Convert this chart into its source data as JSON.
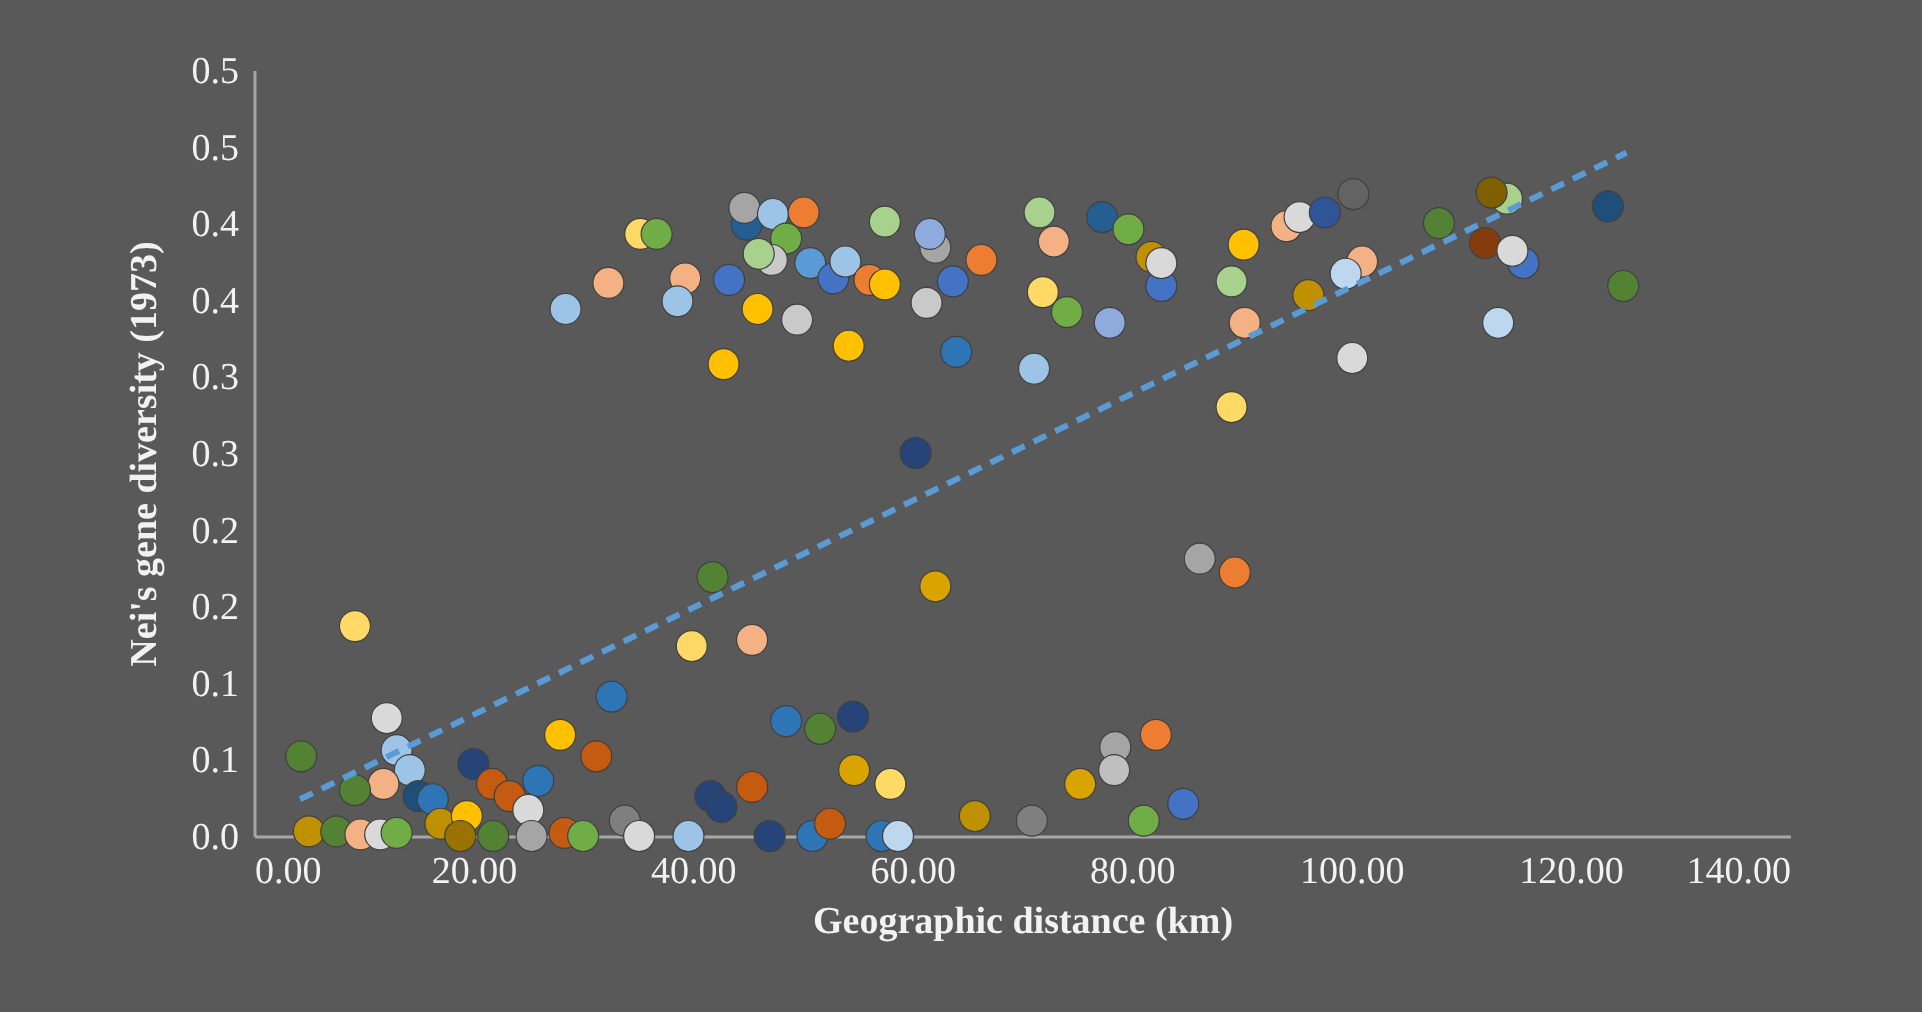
{
  "chart_data": {
    "type": "scatter",
    "xlabel": "Geographic distance (km)",
    "ylabel": "Nei's gene diversity (1973)",
    "xlim": [
      0,
      140
    ],
    "ylim": [
      0,
      0.5
    ],
    "xticks": [
      {
        "value": 0,
        "label": "0.00"
      },
      {
        "value": 20,
        "label": "20.00"
      },
      {
        "value": 40,
        "label": "40.00"
      },
      {
        "value": 60,
        "label": "60.00"
      },
      {
        "value": 80,
        "label": "80.00"
      },
      {
        "value": 100,
        "label": "100.00"
      },
      {
        "value": 120,
        "label": "120.00"
      },
      {
        "value": 140,
        "label": "140.00"
      }
    ],
    "yticks": [
      {
        "value": 0,
        "label": "0.0"
      },
      {
        "value": 0.05,
        "label": "0.1"
      },
      {
        "value": 0.1,
        "label": "0.1"
      },
      {
        "value": 0.15,
        "label": "0.2"
      },
      {
        "value": 0.2,
        "label": "0.2"
      },
      {
        "value": 0.25,
        "label": "0.3"
      },
      {
        "value": 0.3,
        "label": "0.3"
      },
      {
        "value": 0.35,
        "label": "0.4"
      },
      {
        "value": 0.4,
        "label": "0.4"
      },
      {
        "value": 0.45,
        "label": "0.5"
      },
      {
        "value": 0.5,
        "label": "0.5"
      }
    ],
    "grid": false,
    "marker": "circle",
    "series": [
      {
        "type": "scatter",
        "x": [
          28.4,
          32.3,
          35.2,
          36.7,
          39.3,
          38.6,
          43.3,
          45.9,
          42.8,
          44.9,
          44.7,
          47.3,
          50.1,
          48.5,
          47.2,
          46.0,
          50.7,
          52.8,
          53.9,
          49.5,
          54.2,
          56.1,
          57.5,
          57.5,
          62.1,
          61.6,
          63.7,
          66.3,
          61.3,
          64.0,
          60.3,
          71.6,
          72.9,
          71.9,
          74.1,
          71.1,
          77.3,
          79.7,
          81.8,
          82.7,
          82.7,
          78.0,
          90.2,
          89.1,
          90.3,
          89.1,
          94.1,
          95.3,
          97.6,
          100.2,
          96.1,
          101.0,
          99.5,
          100.1,
          108.0,
          114.2,
          112.8,
          112.2,
          115.7,
          114.7,
          113.4,
          123.4,
          124.8,
          4.3,
          9.2,
          12.1,
          13.0,
          14.2,
          11.8,
          9.2,
          15.0,
          16.3,
          5.0,
          7.5,
          9.7,
          11.5,
          13.0,
          17.0,
          19.4,
          18.8,
          21.8,
          20.0,
          21.7,
          23.3,
          25.9,
          25.0,
          25.3,
          27.9,
          31.2,
          32.6,
          41.8,
          39.9,
          45.4,
          28.3,
          30.0,
          33.8,
          35.1,
          39.6,
          41.6,
          42.6,
          45.4,
          47.0,
          48.5,
          51.6,
          54.6,
          54.7,
          58.0,
          50.9,
          52.5,
          57.2,
          58.7,
          62.1,
          65.7,
          70.9,
          75.3,
          78.5,
          78.4,
          82.2,
          81.1,
          84.7,
          86.2,
          89.4
        ],
        "values": [
          0.344,
          0.361,
          0.393,
          0.393,
          0.364,
          0.349,
          0.363,
          0.344,
          0.308,
          0.399,
          0.41,
          0.406,
          0.407,
          0.39,
          0.376,
          0.38,
          0.374,
          0.364,
          0.375,
          0.337,
          0.32,
          0.363,
          0.36,
          0.401,
          0.384,
          0.393,
          0.362,
          0.376,
          0.348,
          0.316,
          0.25,
          0.407,
          0.388,
          0.355,
          0.342,
          0.305,
          0.404,
          0.396,
          0.378,
          0.359,
          0.374,
          0.335,
          0.386,
          0.362,
          0.335,
          0.28,
          0.398,
          0.404,
          0.407,
          0.419,
          0.353,
          0.375,
          0.367,
          0.312,
          0.4,
          0.416,
          0.42,
          0.387,
          0.374,
          0.382,
          0.335,
          0.411,
          0.359,
          0.052,
          0.137,
          0.077,
          0.056,
          0.043,
          0.034,
          0.03,
          0.026,
          0.024,
          0.003,
          0.003,
          0.001,
          0.001,
          0.002,
          0.008,
          0.013,
          0.0,
          0.0,
          0.047,
          0.034,
          0.026,
          0.036,
          0.017,
          0.0,
          0.066,
          0.052,
          0.091,
          0.169,
          0.124,
          0.128,
          0.002,
          0.0,
          0.01,
          0.0,
          0.0,
          0.026,
          0.019,
          0.032,
          0.0,
          0.075,
          0.07,
          0.078,
          0.043,
          0.034,
          0.0,
          0.008,
          0.0,
          0.0,
          0.163,
          0.013,
          0.01,
          0.034,
          0.058,
          0.043,
          0.066,
          0.01,
          0.021,
          0.181,
          0.172
        ],
        "colors": [
          "#9dc3e6",
          "#f4b183",
          "#ffd966",
          "#70ad47",
          "#f4b183",
          "#9dc3e6",
          "#4472c4",
          "#ffc000",
          "#ffc000",
          "#255e91",
          "#a5a5a5",
          "#9dc3e6",
          "#ed7d31",
          "#70ad47",
          "#c9c9c9",
          "#a9d18e",
          "#5b9bd5",
          "#4472c4",
          "#9dc3e6",
          "#c9c9c9",
          "#ffc000",
          "#ed7d31",
          "#ffc000",
          "#a9d18e",
          "#a5a5a5",
          "#8faadc",
          "#4472c4",
          "#ed7d31",
          "#c9c9c9",
          "#2e75b6",
          "#264478",
          "#a9d18e",
          "#f4b183",
          "#ffd966",
          "#70ad47",
          "#9dc3e6",
          "#255e91",
          "#70ad47",
          "#bf9000",
          "#4472c4",
          "#d9d9d9",
          "#8faadc",
          "#ffc000",
          "#a9d18e",
          "#f4b183",
          "#ffd966",
          "#f4b183",
          "#d9d9d9",
          "#2f5597",
          "#636363",
          "#bf9000",
          "#f4b183",
          "#bdd7ee",
          "#d9d9d9",
          "#548235",
          "#a9d18e",
          "#7f6000",
          "#843c0c",
          "#4472c4",
          "#d9d9d9",
          "#bdd7ee",
          "#1f4e79",
          "#548235",
          "#548235",
          "#ffd966",
          "#d9d9d9",
          "#9dc3e6",
          "#9dc3e6",
          "#f4b183",
          "#548235",
          "#1f4e79",
          "#2e75b6",
          "#bf9000",
          "#548235",
          "#f4b183",
          "#d9d9d9",
          "#70ad47",
          "#bf9000",
          "#ffc000",
          "#997300",
          "#548235",
          "#264478",
          "#c55a11",
          "#c55a11",
          "#2e75b6",
          "#d9d9d9",
          "#a5a5a5",
          "#ffc000",
          "#c55a11",
          "#2e75b6",
          "#548235",
          "#ffd966",
          "#f4b183",
          "#c55a11",
          "#70ad47",
          "#7f7f7f",
          "#d9d9d9",
          "#9dc3e6",
          "#264478",
          "#264478",
          "#c55a11",
          "#264478",
          "#2e75b6",
          "#548235",
          "#264478",
          "#d9a300",
          "#ffd966",
          "#2e75b6",
          "#c55a11",
          "#2e75b6",
          "#bdd7ee",
          "#d9a300",
          "#bf9000",
          "#7f7f7f",
          "#d9a300",
          "#a5a5a5",
          "#bfbfbf",
          "#ed7d31",
          "#70ad47",
          "#4472c4",
          "#a5a5a5",
          "#ed7d31"
        ]
      },
      {
        "type": "line",
        "x": [
          4.2,
          125.1
        ],
        "values": [
          0.024,
          0.446
        ],
        "color": "#5b9bd5",
        "line_style": "dashed",
        "marker": "none"
      }
    ]
  }
}
